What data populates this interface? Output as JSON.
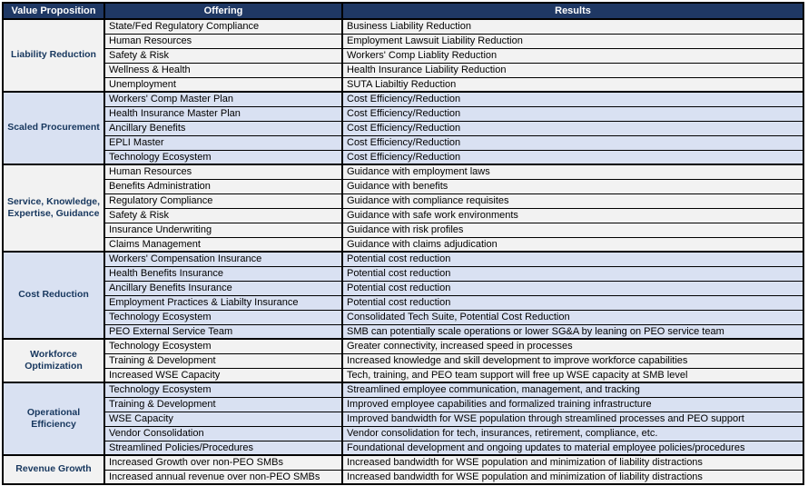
{
  "table": {
    "headers": [
      "Value Proposition",
      "Offering",
      "Results"
    ],
    "sections": [
      {
        "label": "Liability Reduction",
        "rows": [
          [
            "State/Fed Regulatory Compliance",
            "Business Liability Reduction"
          ],
          [
            "Human Resources",
            "Employment Lawsuit Liability Reduction"
          ],
          [
            "Safety & Risk",
            "Workers' Comp Liablity Reduction"
          ],
          [
            "Wellness & Health",
            "Health Insurance Liability Reduction"
          ],
          [
            "Unemployment",
            "SUTA Liabiltiy Reduction"
          ]
        ]
      },
      {
        "label": "Scaled Procurement",
        "rows": [
          [
            "Workers' Comp Master Plan",
            "Cost Efficiency/Reduction"
          ],
          [
            "Health Insurance Master Plan",
            "Cost Efficiency/Reduction"
          ],
          [
            "Ancillary Benefits",
            "Cost Efficiency/Reduction"
          ],
          [
            "EPLI Master",
            "Cost Efficiency/Reduction"
          ],
          [
            "Technology Ecosystem",
            "Cost Efficiency/Reduction"
          ]
        ]
      },
      {
        "label": "Service, Knowledge, Expertise, Guidance",
        "rows": [
          [
            "Human Resources",
            "Guidance with employment laws"
          ],
          [
            "Benefits Administration",
            "Guidance with benefits"
          ],
          [
            "Regulatory Compliance",
            "Guidance with compliance requisites"
          ],
          [
            "Safety & Risk",
            "Guidance with safe work environments"
          ],
          [
            "Insurance Underwriting",
            "Guidance with risk profiles"
          ],
          [
            "Claims Management",
            "Guidance with claims adjudication"
          ]
        ]
      },
      {
        "label": "Cost Reduction",
        "rows": [
          [
            "Workers' Compensation Insurance",
            "Potential cost reduction"
          ],
          [
            "Health Benefits Insurance",
            "Potential cost reduction"
          ],
          [
            "Ancillary Benefits Insurance",
            "Potential cost reduction"
          ],
          [
            "Employment Practices & Liabilty Insurance",
            "Potential cost reduction"
          ],
          [
            "Technology Ecosystem",
            "Consolidated Tech Suite, Potential Cost Reduction"
          ],
          [
            "PEO External Service Team",
            "SMB can potentially scale operations or lower SG&A by leaning on PEO service team"
          ]
        ]
      },
      {
        "label": "Workforce Optimization",
        "rows": [
          [
            "Technology Ecosystem",
            "Greater connectivity, increased speed in processes"
          ],
          [
            "Training & Development",
            "Increased knowledge and skill development to improve workforce capabilities"
          ],
          [
            "Increased WSE Capacity",
            "Tech, training, and PEO team support will free up WSE capacity at SMB level"
          ]
        ]
      },
      {
        "label": "Operational Efficiency",
        "rows": [
          [
            "Technology Ecosystem",
            "Streamlined employee communication, management, and tracking"
          ],
          [
            "Training & Development",
            "Improved employee capabilities and formalized training infrastructure"
          ],
          [
            "WSE Capacity",
            "Improved bandwidth for WSE population through streamlined processes and PEO support"
          ],
          [
            "Vendor Consolidation",
            "Vendor consolidation for tech, insurances, retirement, compliance, etc."
          ],
          [
            "Streamlined Policies/Procedures",
            "Foundational development and ongoing updates to material employee policies/procedures"
          ]
        ]
      },
      {
        "label": "Revenue Growth",
        "rows": [
          [
            "Increased Growth over non-PEO SMBs",
            "Increased bandwidth for WSE population and minimization of liability distractions"
          ],
          [
            "Increased annual revenue over non-PEO SMBs",
            "Increased bandwidth for WSE population and minimization of liability distractions"
          ]
        ]
      }
    ],
    "colors": {
      "header_bg": "#1F3864",
      "header_text": "#FFFFFF",
      "section_plain_bg": "#F2F2F2",
      "section_alt_bg": "#D9E1F2",
      "label_text": "#17375E",
      "cell_text": "#000000",
      "border": "#000000"
    }
  }
}
